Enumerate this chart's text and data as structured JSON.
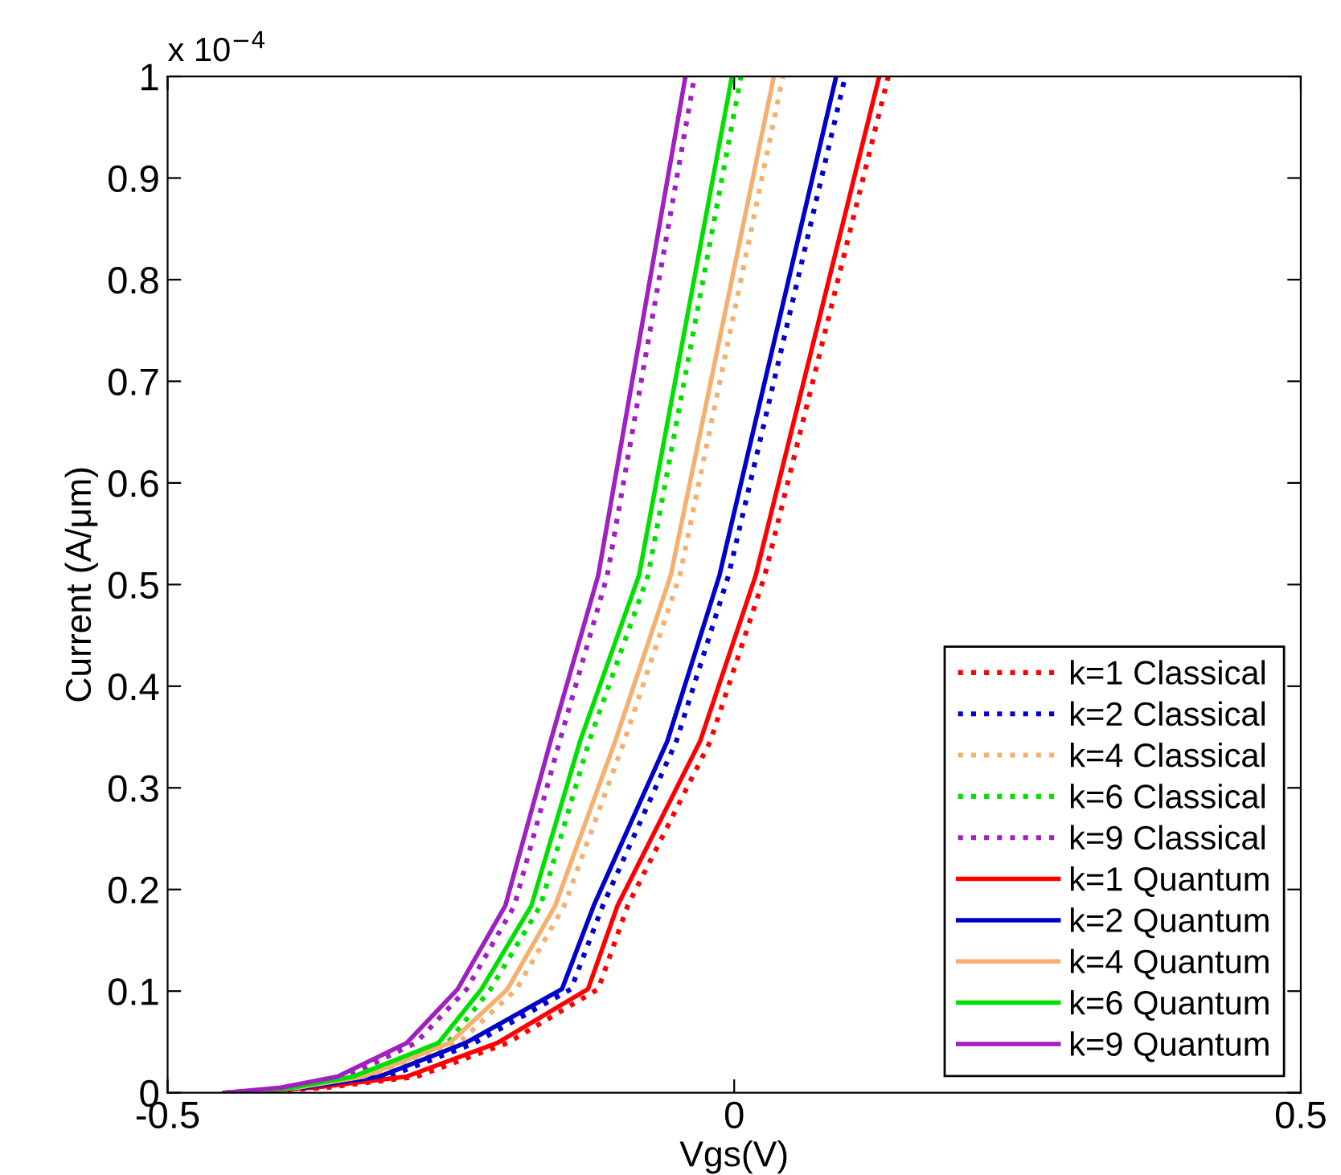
{
  "chart_data": {
    "type": "line",
    "xlabel": "Vgs(V)",
    "ylabel": "Current (A/μm)",
    "annotations": [
      "x 10$^{−4}$"
    ],
    "xlim": [
      -0.5,
      0.5
    ],
    "xticks": [
      -0.5,
      0,
      0.5
    ],
    "ylim": [
      0,
      1
    ],
    "yticks": [
      0,
      0.1,
      0.2,
      0.3,
      0.4,
      0.5,
      0.6,
      0.7,
      0.8,
      0.9,
      1
    ],
    "grid": false,
    "legend": "bottom right",
    "marker": "none",
    "series": [
      {
        "name": "k=1 Classical",
        "color": "#ff0000",
        "line_style": "dotted",
        "x": [
          -0.44,
          -0.36,
          -0.28,
          -0.2,
          -0.12,
          -0.094,
          -0.021,
          0.027,
          0.136
        ],
        "values": [
          0,
          0.005,
          0.016,
          0.049,
          0.102,
          0.184,
          0.346,
          0.509,
          1.0
        ]
      },
      {
        "name": "k=2 Classical",
        "color": "#0000cc",
        "line_style": "dotted",
        "x": [
          -0.44,
          -0.372,
          -0.305,
          -0.229,
          -0.144,
          -0.116,
          -0.051,
          -0.005,
          0.098
        ],
        "values": [
          0,
          0.005,
          0.016,
          0.049,
          0.102,
          0.184,
          0.346,
          0.509,
          1.0
        ]
      },
      {
        "name": "k=4 Classical",
        "color": "#f5b070",
        "line_style": "dotted",
        "x": [
          -0.44,
          -0.377,
          -0.319,
          -0.243,
          -0.192,
          -0.15,
          -0.097,
          -0.048,
          0.043
        ],
        "values": [
          0,
          0.005,
          0.016,
          0.049,
          0.102,
          0.184,
          0.346,
          0.509,
          1.0
        ]
      },
      {
        "name": "k=6 Classical",
        "color": "#00e000",
        "line_style": "dotted",
        "x": [
          -0.44,
          -0.382,
          -0.328,
          -0.253,
          -0.215,
          -0.171,
          -0.128,
          -0.076,
          0.006
        ],
        "values": [
          0,
          0.005,
          0.016,
          0.049,
          0.102,
          0.184,
          0.346,
          0.509,
          1.0
        ]
      },
      {
        "name": "k=9 Classical",
        "color": "#a020c0",
        "line_style": "dotted",
        "x": [
          -0.44,
          -0.392,
          -0.342,
          -0.281,
          -0.236,
          -0.194,
          -0.154,
          -0.112,
          -0.035
        ],
        "values": [
          0,
          0.005,
          0.016,
          0.049,
          0.102,
          0.184,
          0.346,
          0.509,
          1.0
        ]
      },
      {
        "name": "k=1 Quantum",
        "color": "#ff0000",
        "line_style": "solid",
        "x": [
          -0.45,
          -0.37,
          -0.289,
          -0.209,
          -0.129,
          -0.103,
          -0.03,
          0.019,
          0.128
        ],
        "values": [
          0,
          0.005,
          0.016,
          0.049,
          0.102,
          0.184,
          0.346,
          0.509,
          1.0
        ]
      },
      {
        "name": "k=2 Quantum",
        "color": "#0000cc",
        "line_style": "solid",
        "x": [
          -0.45,
          -0.38,
          -0.313,
          -0.237,
          -0.152,
          -0.124,
          -0.059,
          -0.013,
          0.09
        ],
        "values": [
          0,
          0.005,
          0.016,
          0.049,
          0.102,
          0.184,
          0.346,
          0.509,
          1.0
        ]
      },
      {
        "name": "k=4 Quantum",
        "color": "#f5b070",
        "line_style": "solid",
        "x": [
          -0.45,
          -0.385,
          -0.327,
          -0.251,
          -0.2,
          -0.158,
          -0.105,
          -0.056,
          0.035
        ],
        "values": [
          0,
          0.005,
          0.016,
          0.049,
          0.102,
          0.184,
          0.346,
          0.509,
          1.0
        ]
      },
      {
        "name": "k=6 Quantum",
        "color": "#00e000",
        "line_style": "solid",
        "x": [
          -0.45,
          -0.39,
          -0.336,
          -0.261,
          -0.223,
          -0.179,
          -0.136,
          -0.084,
          -0.002
        ],
        "values": [
          0,
          0.005,
          0.016,
          0.049,
          0.102,
          0.184,
          0.346,
          0.509,
          1.0
        ]
      },
      {
        "name": "k=9 Quantum",
        "color": "#a020c0",
        "line_style": "solid",
        "x": [
          -0.45,
          -0.4,
          -0.35,
          -0.289,
          -0.244,
          -0.202,
          -0.162,
          -0.12,
          -0.043
        ],
        "values": [
          0,
          0.005,
          0.016,
          0.049,
          0.102,
          0.184,
          0.346,
          0.509,
          1.0
        ]
      }
    ]
  }
}
